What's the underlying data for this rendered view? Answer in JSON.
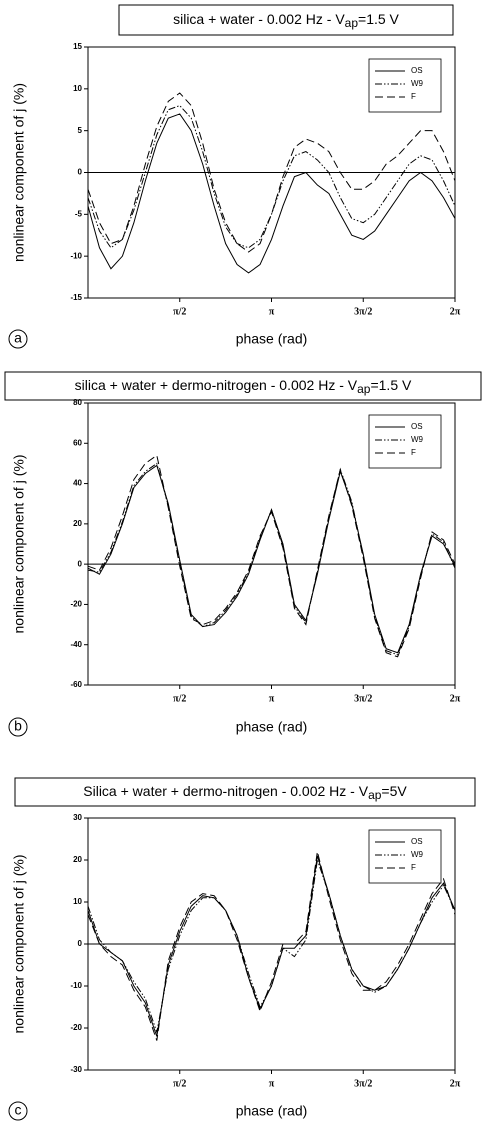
{
  "chart_data": [
    {
      "type": "line",
      "panel_label": "a",
      "title_parts": [
        "silica + water  - 0.002 Hz  - V",
        "ap",
        "=1.5 V"
      ],
      "x_label": "phase (rad)",
      "y_label": "nonlinear component of j (%)",
      "x": [
        0,
        0.1963,
        0.3927,
        0.589,
        0.7854,
        0.9817,
        1.1781,
        1.3744,
        1.5708,
        1.7671,
        1.9635,
        2.1598,
        2.3562,
        2.5525,
        2.7489,
        2.9452,
        3.1416,
        3.3379,
        3.5343,
        3.7306,
        3.927,
        4.1233,
        4.3197,
        4.516,
        4.7124,
        4.9087,
        5.1051,
        5.3014,
        5.4978,
        5.6941,
        5.8905,
        6.0868,
        6.2832
      ],
      "xlim": [
        0,
        6.2832
      ],
      "xticks": [
        {
          "value": 1.5708,
          "label": "π/2"
        },
        {
          "value": 3.1416,
          "label": "π"
        },
        {
          "value": 4.7124,
          "label": "3π/2"
        },
        {
          "value": 6.2832,
          "label": "2π"
        }
      ],
      "ylim": [
        -15,
        15
      ],
      "yticks": [
        -15,
        -10,
        -5,
        0,
        5,
        10,
        15
      ],
      "zero_line": true,
      "legend": "upper right",
      "series": [
        {
          "name": "OS",
          "color": "#000000",
          "line_style": "solid",
          "values": [
            -4,
            -9,
            -11.5,
            -10,
            -6,
            -1,
            3.5,
            6.5,
            7,
            5,
            1,
            -4,
            -8.5,
            -11,
            -12,
            -11,
            -8,
            -4,
            -0.5,
            0,
            -1.5,
            -2.5,
            -5,
            -7.5,
            -8,
            -7,
            -5,
            -3,
            -1,
            0,
            -1,
            -3,
            -5.5
          ]
        },
        {
          "name": "W9",
          "color": "#000000",
          "line_style": "dash-dot-dot",
          "values": [
            -3,
            -7,
            -9,
            -8,
            -4.5,
            0,
            4.5,
            7.5,
            8,
            6.5,
            2.5,
            -2.5,
            -6.5,
            -8.5,
            -9,
            -8,
            -5,
            -1,
            2,
            2.5,
            1.5,
            0,
            -3,
            -5.5,
            -6,
            -5,
            -3,
            -1,
            1,
            2,
            1.5,
            -1,
            -4
          ]
        },
        {
          "name": "F",
          "color": "#000000",
          "line_style": "dashed",
          "values": [
            -2,
            -6,
            -8.5,
            -8,
            -4,
            1,
            5.5,
            8.5,
            9.5,
            8,
            3.5,
            -2,
            -6,
            -8.5,
            -9.5,
            -8.5,
            -5,
            -0.5,
            3,
            4,
            3.5,
            2.5,
            0,
            -2,
            -2,
            -1,
            1,
            2,
            3.5,
            5,
            5,
            2.5,
            -1
          ]
        }
      ]
    },
    {
      "type": "line",
      "panel_label": "b",
      "title_parts": [
        "silica + water + dermo-nitrogen  -  0.002 Hz  - V",
        "ap",
        "=1.5 V"
      ],
      "x_label": "phase (rad)",
      "y_label": "nonlinear component of j (%)",
      "x": [
        0,
        0.1963,
        0.3927,
        0.589,
        0.7854,
        0.9817,
        1.1781,
        1.3744,
        1.5708,
        1.7671,
        1.9635,
        2.1598,
        2.3562,
        2.5525,
        2.7489,
        2.9452,
        3.1416,
        3.3379,
        3.5343,
        3.7306,
        3.927,
        4.1233,
        4.3197,
        4.516,
        4.7124,
        4.9087,
        5.1051,
        5.3014,
        5.4978,
        5.6941,
        5.8905,
        6.0868,
        6.2832
      ],
      "xlim": [
        0,
        6.2832
      ],
      "xticks": [
        {
          "value": 1.5708,
          "label": "π/2"
        },
        {
          "value": 3.1416,
          "label": "π"
        },
        {
          "value": 4.7124,
          "label": "3π/2"
        },
        {
          "value": 6.2832,
          "label": "2π"
        }
      ],
      "ylim": [
        -60,
        80
      ],
      "yticks": [
        -60,
        -40,
        -20,
        0,
        20,
        40,
        60,
        80
      ],
      "zero_line": true,
      "legend": "upper right",
      "series": [
        {
          "name": "OS",
          "color": "#000000",
          "line_style": "solid",
          "values": [
            -2,
            -5,
            5,
            20,
            38,
            45,
            49,
            30,
            2,
            -25,
            -31,
            -30,
            -24,
            -16,
            -5,
            12,
            27,
            10,
            -20,
            -28,
            -5,
            22,
            46,
            30,
            5,
            -25,
            -42,
            -44,
            -30,
            -5,
            14,
            10,
            -1
          ]
        },
        {
          "name": "W9",
          "color": "#000000",
          "line_style": "dash-dot-dot",
          "values": [
            -3,
            -4,
            6,
            21,
            39,
            46,
            50,
            29,
            1,
            -26,
            -31,
            -29,
            -23,
            -15,
            -4,
            13,
            27,
            9,
            -21,
            -29,
            -4,
            23,
            47,
            31,
            4,
            -26,
            -43,
            -45,
            -31,
            -6,
            15,
            11,
            -2
          ]
        },
        {
          "name": "F",
          "color": "#000000",
          "line_style": "dashed",
          "values": [
            -1,
            -3,
            8,
            24,
            42,
            50,
            54,
            28,
            -1,
            -27,
            -30,
            -28,
            -22,
            -14,
            -3,
            14,
            26,
            8,
            -22,
            -30,
            -3,
            24,
            47,
            29,
            3,
            -27,
            -44,
            -46,
            -32,
            -7,
            16,
            12,
            0
          ]
        }
      ]
    },
    {
      "type": "line",
      "panel_label": "c",
      "title_parts": [
        "Silica + water + dermo-nitrogen - 0.002 Hz - V",
        "ap",
        "=5V"
      ],
      "x_label": "phase (rad)",
      "y_label": "nonlinear component of j (%)",
      "x": [
        0,
        0.1963,
        0.3927,
        0.589,
        0.7854,
        0.9817,
        1.1781,
        1.3744,
        1.5708,
        1.7671,
        1.9635,
        2.1598,
        2.3562,
        2.5525,
        2.7489,
        2.9452,
        3.1416,
        3.3379,
        3.5343,
        3.7306,
        3.927,
        4.1233,
        4.3197,
        4.516,
        4.7124,
        4.9087,
        5.1051,
        5.3014,
        5.4978,
        5.6941,
        5.8905,
        6.0868,
        6.2832
      ],
      "xlim": [
        0,
        6.2832
      ],
      "xticks": [
        {
          "value": 1.5708,
          "label": "π/2"
        },
        {
          "value": 3.1416,
          "label": "π"
        },
        {
          "value": 4.7124,
          "label": "3π/2"
        },
        {
          "value": 6.2832,
          "label": "2π"
        }
      ],
      "ylim": [
        -30,
        30
      ],
      "yticks": [
        -30,
        -20,
        -10,
        0,
        10,
        20,
        30
      ],
      "zero_line": true,
      "legend": "upper right",
      "series": [
        {
          "name": "OS",
          "color": "#000000",
          "line_style": "solid",
          "values": [
            8,
            0,
            -2,
            -4,
            -10,
            -14,
            -22,
            -5,
            3,
            9,
            11.5,
            11,
            8,
            2,
            -8,
            -15.5,
            -10,
            -1,
            -1,
            2,
            21,
            12,
            2,
            -6,
            -10,
            -11,
            -10,
            -6,
            -1,
            5,
            11,
            14.5,
            8
          ]
        },
        {
          "name": "W9",
          "color": "#000000",
          "line_style": "dash-dot-dot",
          "values": [
            9,
            1,
            -2,
            -4,
            -9,
            -13,
            -21,
            -6,
            2,
            8,
            11,
            11,
            8,
            2,
            -7,
            -15,
            -10,
            -1,
            -3,
            1,
            20,
            12,
            2,
            -6,
            -10,
            -11.5,
            -10,
            -6,
            -1,
            5,
            10,
            14,
            8
          ]
        },
        {
          "name": "F",
          "color": "#000000",
          "line_style": "dashed",
          "values": [
            7,
            0,
            -3,
            -5,
            -11,
            -15,
            -23,
            -4,
            4,
            10,
            12,
            11.5,
            8,
            1,
            -8,
            -16,
            -9,
            0,
            0,
            3,
            22,
            11,
            1,
            -7,
            -11,
            -11,
            -9,
            -5,
            0,
            6,
            12,
            15.5,
            7
          ]
        }
      ]
    }
  ]
}
